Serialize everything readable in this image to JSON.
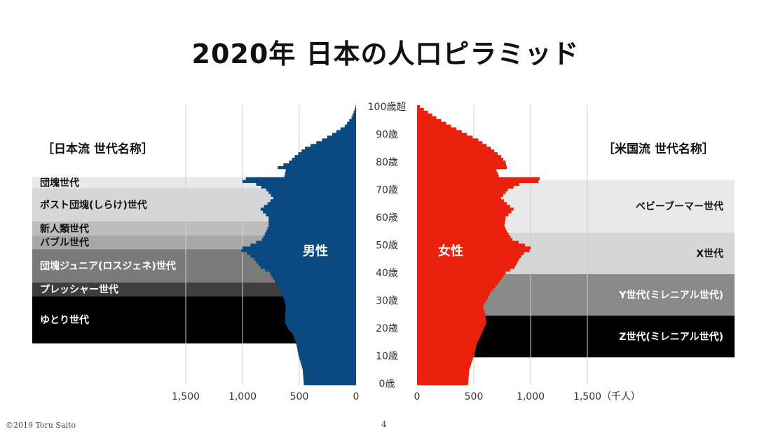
{
  "title": "2020年 日本の人口ピラミッド",
  "footer": {
    "copyright": "©2019 Toru Saito",
    "page": "4"
  },
  "colors": {
    "male": "#0b4a80",
    "female": "#e8200c",
    "axis_text": "#222222",
    "grid": "#cfcfcf"
  },
  "chart_data": {
    "type": "bar",
    "orientation": "horizontal",
    "title": "2020年 日本の人口ピラミッド",
    "xlabel": "（千人）",
    "x_ticks_male": [
      "1,500",
      "1,000",
      "500",
      "0"
    ],
    "x_ticks_female": [
      "0",
      "500",
      "1,000",
      "1,500"
    ],
    "xlim": [
      0,
      1500
    ],
    "grid": true,
    "age_labels": [
      "100歳超",
      "90歳",
      "80歳",
      "70歳",
      "60歳",
      "50歳",
      "40歳",
      "30歳",
      "20歳",
      "10歳",
      "0歳"
    ],
    "series": [
      {
        "name": "男性",
        "color": "#0b4a80",
        "age_keypoints": [
          [
            0,
            460
          ],
          [
            5,
            470
          ],
          [
            10,
            505
          ],
          [
            15,
            530
          ],
          [
            18,
            560
          ],
          [
            20,
            600
          ],
          [
            22,
            625
          ],
          [
            25,
            625
          ],
          [
            28,
            620
          ],
          [
            30,
            630
          ],
          [
            33,
            660
          ],
          [
            36,
            700
          ],
          [
            40,
            760
          ],
          [
            42,
            840
          ],
          [
            45,
            900
          ],
          [
            47,
            960
          ],
          [
            48,
            1010
          ],
          [
            49,
            1000
          ],
          [
            50,
            930
          ],
          [
            52,
            830
          ],
          [
            55,
            790
          ],
          [
            57,
            770
          ],
          [
            60,
            770
          ],
          [
            62,
            820
          ],
          [
            63,
            840
          ],
          [
            65,
            780
          ],
          [
            67,
            730
          ],
          [
            70,
            790
          ],
          [
            72,
            880
          ],
          [
            73,
            1000
          ],
          [
            74,
            970
          ],
          [
            75,
            630
          ],
          [
            77,
            620
          ],
          [
            78,
            690
          ],
          [
            80,
            590
          ],
          [
            82,
            540
          ],
          [
            85,
            450
          ],
          [
            88,
            300
          ],
          [
            90,
            210
          ],
          [
            93,
            100
          ],
          [
            96,
            40
          ],
          [
            99,
            12
          ],
          [
            100,
            5
          ]
        ]
      },
      {
        "name": "女性",
        "color": "#e8200c",
        "age_keypoints": [
          [
            0,
            450
          ],
          [
            5,
            460
          ],
          [
            10,
            500
          ],
          [
            15,
            530
          ],
          [
            18,
            570
          ],
          [
            20,
            590
          ],
          [
            22,
            610
          ],
          [
            25,
            600
          ],
          [
            28,
            580
          ],
          [
            30,
            610
          ],
          [
            33,
            650
          ],
          [
            36,
            710
          ],
          [
            40,
            780
          ],
          [
            42,
            860
          ],
          [
            45,
            900
          ],
          [
            47,
            940
          ],
          [
            48,
            990
          ],
          [
            49,
            1000
          ],
          [
            50,
            950
          ],
          [
            52,
            840
          ],
          [
            55,
            790
          ],
          [
            57,
            770
          ],
          [
            60,
            780
          ],
          [
            62,
            830
          ],
          [
            63,
            850
          ],
          [
            65,
            790
          ],
          [
            67,
            740
          ],
          [
            70,
            800
          ],
          [
            72,
            900
          ],
          [
            73,
            1070
          ],
          [
            74,
            1080
          ],
          [
            75,
            720
          ],
          [
            77,
            700
          ],
          [
            78,
            790
          ],
          [
            80,
            780
          ],
          [
            82,
            740
          ],
          [
            85,
            650
          ],
          [
            88,
            540
          ],
          [
            90,
            440
          ],
          [
            93,
            300
          ],
          [
            96,
            170
          ],
          [
            99,
            60
          ],
          [
            100,
            25
          ]
        ]
      }
    ],
    "center_labels": {
      "male": "男性",
      "female": "女性"
    }
  },
  "generations_japan": {
    "heading": "［日本流 世代名称］",
    "bands": [
      {
        "label": "団塊世代",
        "ages": [
          71,
          74
        ],
        "shade": "#e9e9e9",
        "text_color": "#111111"
      },
      {
        "label": "ポスト団塊(しらけ)世代",
        "ages": [
          59,
          70
        ],
        "shade": "#d6d6d6",
        "text_color": "#111111"
      },
      {
        "label": "新人類世代",
        "ages": [
          54,
          58
        ],
        "shade": "#bdbdbd",
        "text_color": "#111111"
      },
      {
        "label": "バブル世代",
        "ages": [
          49,
          53
        ],
        "shade": "#a7a7a7",
        "text_color": "#111111"
      },
      {
        "label": "団塊ジュニア(ロスジェネ)世代",
        "ages": [
          37,
          48
        ],
        "shade": "#7a7a7a",
        "text_color": "#ffffff"
      },
      {
        "label": "プレッシャー世代",
        "ages": [
          32,
          36
        ],
        "shade": "#3e3e3e",
        "text_color": "#ffffff"
      },
      {
        "label": "ゆとり世代",
        "ages": [
          15,
          31
        ],
        "shade": "#000000",
        "text_color": "#ffffff"
      }
    ]
  },
  "generations_us": {
    "heading": "［米国流 世代名称］",
    "bands": [
      {
        "label": "ベビーブーマー世代",
        "ages": [
          55,
          73
        ],
        "shade": "#e9e9e9",
        "text_color": "#111111"
      },
      {
        "label": "X世代",
        "ages": [
          40,
          54
        ],
        "shade": "#d6d6d6",
        "text_color": "#111111"
      },
      {
        "label": "Y世代(ミレニアル世代)",
        "ages": [
          25,
          39
        ],
        "shade": "#8a8a8a",
        "text_color": "#ffffff"
      },
      {
        "label": "Z世代(ミレニアル世代)",
        "ages": [
          10,
          24
        ],
        "shade": "#000000",
        "text_color": "#ffffff"
      }
    ]
  }
}
